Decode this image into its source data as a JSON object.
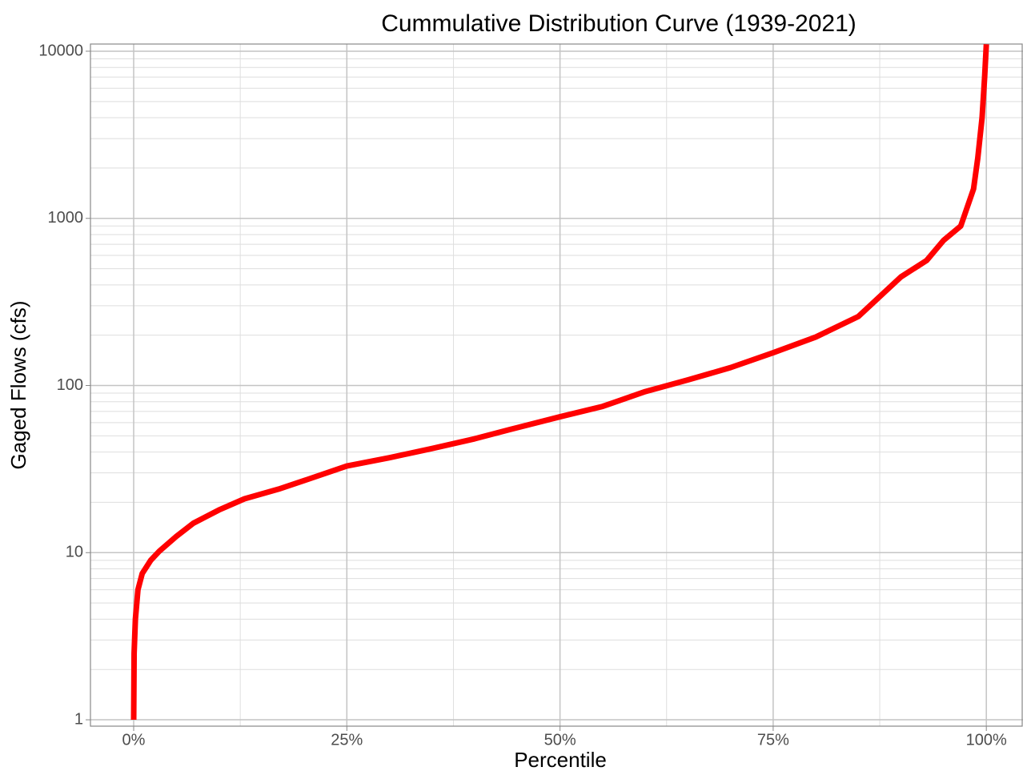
{
  "chart_data": {
    "type": "line",
    "title": "Cummulative Distribution Curve (1939-2021)",
    "x_label": "Percentile",
    "y_label": "Gaged Flows (cfs)",
    "log_y": true,
    "grid": true,
    "xlim": [
      -5.07,
      104.3
    ],
    "ylim": [
      0.916,
      11040
    ],
    "xticks": [
      {
        "value": 0,
        "label": "0%"
      },
      {
        "value": 25,
        "label": "25%"
      },
      {
        "value": 50,
        "label": "50%"
      },
      {
        "value": 75,
        "label": "75%"
      },
      {
        "value": 100,
        "label": "100%"
      }
    ],
    "yticks": [
      1,
      10,
      100,
      1000,
      10000
    ],
    "series": [
      {
        "color": "#ff0000",
        "x": [
          0,
          0.05,
          0.2,
          0.5,
          1,
          2,
          3,
          5,
          7,
          10,
          13,
          17,
          20,
          25,
          30,
          35,
          40,
          45,
          50,
          55,
          60,
          65,
          70,
          75,
          80,
          85,
          90,
          93,
          95,
          97,
          98.5,
          99,
          99.5,
          99.8,
          100
        ],
        "values": [
          1,
          2.5,
          4,
          6,
          7.5,
          9,
          10.2,
          12.5,
          15,
          18,
          21,
          24,
          27,
          33,
          37,
          42,
          48,
          56,
          65,
          75,
          92,
          108,
          128,
          157,
          195,
          259,
          447,
          560,
          740,
          900,
          1500,
          2300,
          4000,
          7000,
          11000
        ]
      }
    ]
  }
}
